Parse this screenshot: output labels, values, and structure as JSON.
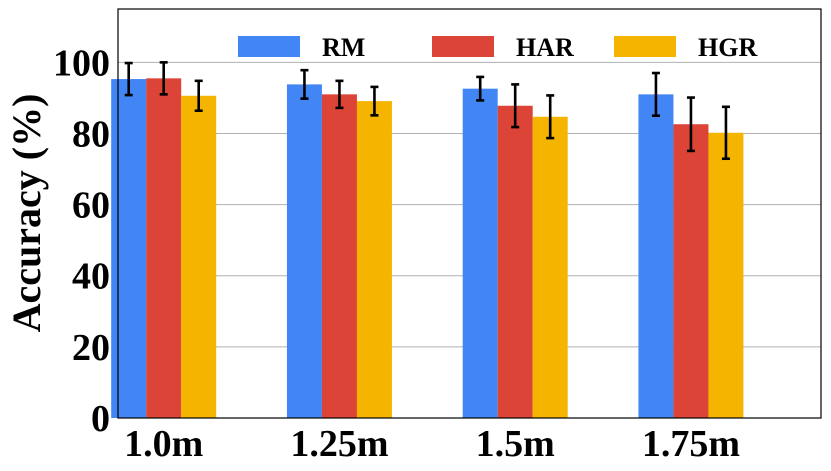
{
  "chart_data": {
    "type": "bar",
    "title": "",
    "xlabel": "",
    "ylabel": "Accuracy (%)",
    "ylim": [
      0,
      115
    ],
    "yticks": [
      0,
      20,
      40,
      60,
      80,
      100
    ],
    "grid": "horizontal",
    "legend_position": "top",
    "categories": [
      "1.0m",
      "1.25m",
      "1.5m",
      "1.75m"
    ],
    "series": [
      {
        "name": "RM",
        "color": "#4285F4",
        "values": [
          95.3,
          93.8,
          92.6,
          91.0
        ],
        "errors": [
          4.5,
          4.0,
          3.3,
          6.0
        ]
      },
      {
        "name": "HAR",
        "color": "#DB4437",
        "values": [
          95.5,
          91.0,
          87.8,
          82.6
        ],
        "errors": [
          4.5,
          3.8,
          6.0,
          7.5
        ]
      },
      {
        "name": "HGR",
        "color": "#F4B400",
        "values": [
          90.6,
          89.1,
          84.7,
          80.2
        ],
        "errors": [
          4.2,
          4.0,
          6.0,
          7.3
        ]
      }
    ]
  }
}
